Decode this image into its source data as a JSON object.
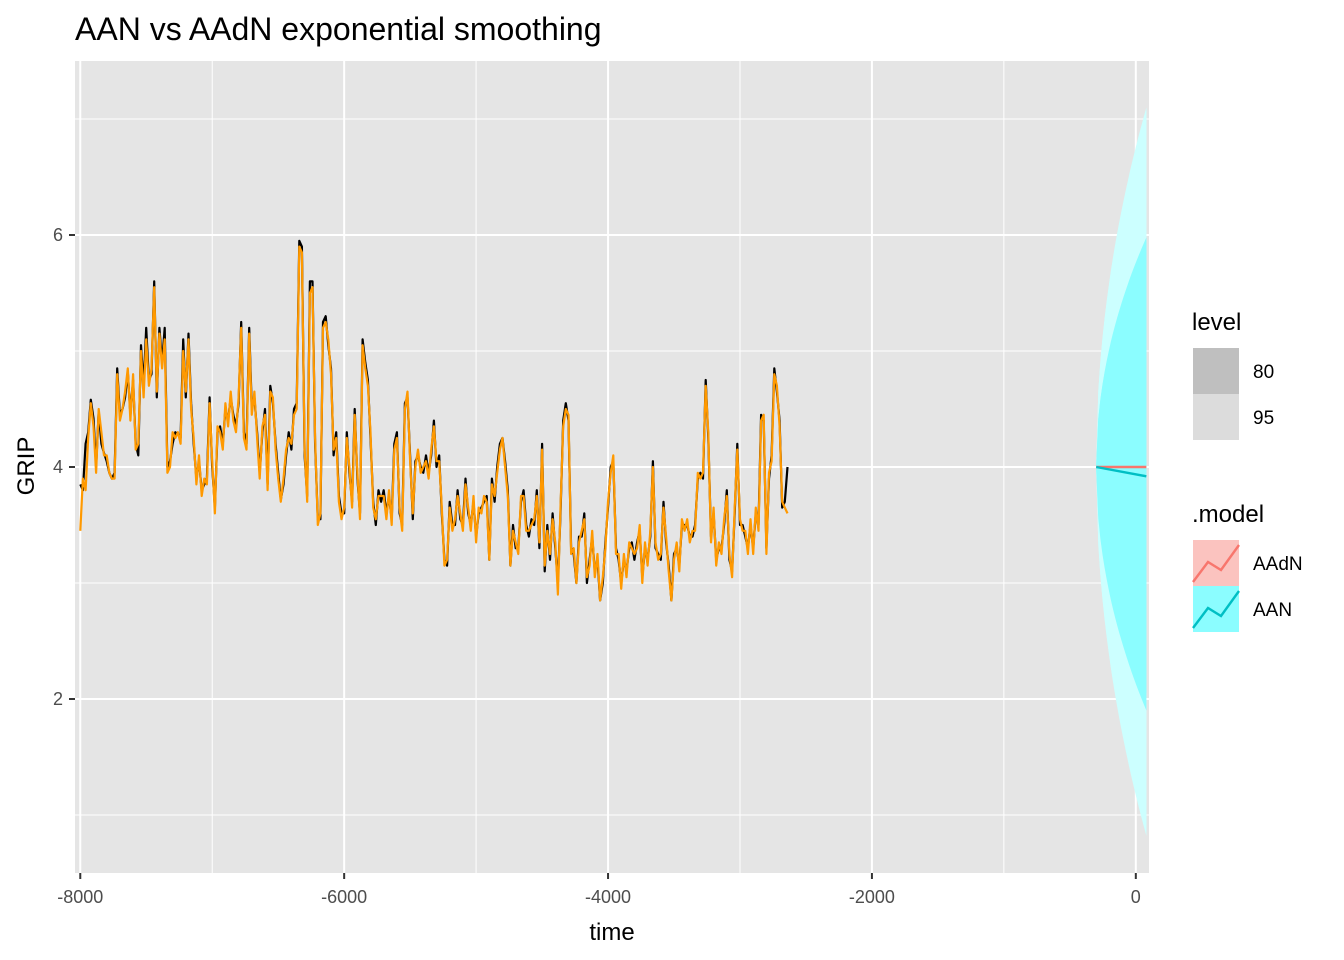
{
  "chart_data": {
    "type": "line",
    "title": "AAN vs AAdN exponential smoothing",
    "xlabel": "time",
    "ylabel": "GRIP",
    "xlim": [
      -8040,
      100
    ],
    "ylim": [
      0.5,
      7.5
    ],
    "x_ticks": [
      -8000,
      -6000,
      -4000,
      -2000,
      0
    ],
    "x_tick_labels": [
      "-8000",
      "-6000",
      "-4000",
      "-2000",
      "0"
    ],
    "y_ticks": [
      2,
      4,
      6
    ],
    "y_tick_labels": [
      "2",
      "4",
      "6"
    ],
    "grid": true,
    "legend_position": "right",
    "colors": {
      "panel": "#e5e5e5",
      "grid": "#ffffff",
      "observed": "#000000",
      "fitted": "#ff9900",
      "AAdN": "#f8766d",
      "AAN": "#00bfc4",
      "interval_80": "#8bfdff",
      "interval_95": "#ccffff"
    },
    "observed_start": -8000,
    "observed_end": -300,
    "observed_step": 20,
    "observed_values": [
      3.85,
      3.8,
      4.2,
      4.3,
      4.58,
      4.42,
      4.0,
      4.48,
      4.2,
      4.12,
      4.05,
      3.95,
      3.9,
      3.95,
      4.85,
      4.45,
      4.5,
      4.6,
      4.82,
      4.45,
      4.75,
      4.2,
      4.1,
      5.05,
      4.7,
      5.2,
      4.75,
      4.8,
      5.6,
      4.6,
      5.2,
      4.9,
      5.2,
      4.0,
      4.05,
      4.2,
      4.3,
      4.28,
      4.25,
      5.1,
      4.6,
      5.15,
      4.55,
      4.2,
      3.9,
      4.05,
      3.8,
      3.85,
      3.9,
      4.6,
      4.0,
      3.65,
      4.3,
      4.35,
      4.2,
      4.5,
      4.4,
      4.6,
      4.45,
      4.35,
      4.55,
      5.25,
      4.3,
      4.2,
      5.2,
      4.5,
      4.6,
      4.3,
      3.95,
      4.3,
      4.5,
      3.85,
      4.7,
      4.55,
      4.2,
      3.95,
      3.72,
      3.85,
      4.1,
      4.3,
      4.15,
      4.5,
      4.55,
      5.95,
      5.9,
      4.1,
      3.75,
      5.6,
      5.6,
      4.2,
      3.55,
      3.55,
      5.25,
      5.3,
      5.05,
      4.85,
      4.1,
      4.3,
      3.75,
      3.6,
      3.6,
      4.3,
      3.95,
      3.7,
      4.5,
      3.9,
      3.6,
      5.1,
      4.9,
      4.75,
      4.25,
      3.7,
      3.5,
      3.8,
      3.7,
      3.8,
      3.6,
      3.75,
      3.55,
      4.2,
      4.3,
      3.6,
      3.5,
      4.55,
      4.6,
      4.1,
      3.55,
      4.05,
      4.1,
      4.0,
      3.95,
      4.1,
      3.95,
      4.1,
      4.4,
      4.0,
      4.1,
      3.6,
      3.2,
      3.15,
      3.7,
      3.5,
      3.5,
      3.8,
      3.55,
      3.5,
      3.9,
      3.6,
      3.5,
      3.7,
      3.4,
      3.6,
      3.65,
      3.7,
      3.75,
      3.2,
      3.9,
      3.7,
      4.0,
      4.2,
      4.25,
      4.05,
      3.8,
      3.15,
      3.5,
      3.3,
      3.3,
      3.7,
      3.8,
      3.5,
      3.4,
      3.55,
      3.5,
      3.8,
      3.3,
      4.2,
      3.1,
      3.5,
      3.2,
      3.6,
      3.3,
      3.0,
      3.6,
      4.4,
      4.55,
      4.4,
      3.3,
      3.25,
      3.0,
      3.4,
      3.4,
      3.6,
      3.0,
      3.2,
      3.4,
      3.1,
      3.2,
      2.85,
      3.0,
      3.35,
      3.65,
      4.0,
      4.05,
      3.3,
      3.2,
      3.0,
      3.2,
      3.1,
      3.3,
      3.35,
      3.2,
      3.35,
      3.45,
      3.05,
      3.3,
      3.2,
      3.4,
      4.05,
      3.3,
      3.25,
      3.2,
      3.7,
      3.35,
      3.15,
      2.85,
      3.25,
      3.3,
      3.15,
      3.5,
      3.5,
      3.5,
      3.4,
      3.4,
      3.5,
      3.9,
      3.95,
      3.9,
      4.75,
      4.25,
      3.4,
      3.6,
      3.2,
      3.3,
      3.3,
      3.5,
      3.8,
      3.2,
      3.1,
      3.6,
      4.2,
      3.5,
      3.5,
      3.4,
      3.3,
      3.5,
      3.3,
      3.6,
      3.5,
      4.45,
      4.4,
      3.3,
      3.9,
      4.1,
      4.85,
      4.65,
      4.4,
      3.65,
      3.7,
      4.0
    ],
    "fitted_start": -8000,
    "fitted_end": -300,
    "fitted_step": 20,
    "fitted_values": [
      3.45,
      3.9,
      3.8,
      4.25,
      4.55,
      4.35,
      3.95,
      4.5,
      4.3,
      4.1,
      4.1,
      3.95,
      3.9,
      3.9,
      4.8,
      4.4,
      4.5,
      4.65,
      4.85,
      4.4,
      4.8,
      4.15,
      4.2,
      5.0,
      4.6,
      5.1,
      4.7,
      4.85,
      5.55,
      4.65,
      5.15,
      4.85,
      5.1,
      3.95,
      4.0,
      4.3,
      4.25,
      4.3,
      4.2,
      5.0,
      4.65,
      5.1,
      4.5,
      4.25,
      3.85,
      4.1,
      3.75,
      3.9,
      3.85,
      4.55,
      4.05,
      3.6,
      4.35,
      4.3,
      4.15,
      4.55,
      4.35,
      4.65,
      4.4,
      4.3,
      4.6,
      5.2,
      4.25,
      4.15,
      5.15,
      4.45,
      4.65,
      4.25,
      3.9,
      4.35,
      4.45,
      3.8,
      4.65,
      4.6,
      4.15,
      3.9,
      3.7,
      3.9,
      4.15,
      4.25,
      4.2,
      4.45,
      4.5,
      5.9,
      5.85,
      4.15,
      3.7,
      5.5,
      5.55,
      4.25,
      3.5,
      3.6,
      5.2,
      5.25,
      5.1,
      4.8,
      4.15,
      4.25,
      3.7,
      3.55,
      3.65,
      4.25,
      4.0,
      3.65,
      4.45,
      3.95,
      3.55,
      5.05,
      4.85,
      4.7,
      4.3,
      3.65,
      3.55,
      3.75,
      3.75,
      3.75,
      3.55,
      3.8,
      3.5,
      4.15,
      4.25,
      3.65,
      3.45,
      4.5,
      4.65,
      4.05,
      3.6,
      4.0,
      4.15,
      3.95,
      4.0,
      4.05,
      3.9,
      4.15,
      4.35,
      4.05,
      4.05,
      3.65,
      3.15,
      3.2,
      3.65,
      3.45,
      3.55,
      3.75,
      3.6,
      3.45,
      3.85,
      3.65,
      3.45,
      3.75,
      3.35,
      3.65,
      3.6,
      3.75,
      3.7,
      3.2,
      3.85,
      3.75,
      3.95,
      4.15,
      4.25,
      4.0,
      3.75,
      3.15,
      3.45,
      3.35,
      3.25,
      3.75,
      3.75,
      3.45,
      3.45,
      3.5,
      3.55,
      3.75,
      3.35,
      4.15,
      3.15,
      3.45,
      3.25,
      3.55,
      3.35,
      2.9,
      3.65,
      4.35,
      4.5,
      4.45,
      3.25,
      3.3,
      3.0,
      3.35,
      3.45,
      3.55,
      3.05,
      3.15,
      3.45,
      3.05,
      3.25,
      2.85,
      3.05,
      3.3,
      3.7,
      3.95,
      4.1,
      3.25,
      3.25,
      2.95,
      3.25,
      3.05,
      3.35,
      3.3,
      3.25,
      3.3,
      3.5,
      3.0,
      3.35,
      3.15,
      3.45,
      4.0,
      3.35,
      3.2,
      3.25,
      3.65,
      3.4,
      3.1,
      2.85,
      3.2,
      3.35,
      3.1,
      3.55,
      3.45,
      3.55,
      3.35,
      3.45,
      3.45,
      3.95,
      3.9,
      3.95,
      4.7,
      4.3,
      3.35,
      3.65,
      3.15,
      3.35,
      3.25,
      3.55,
      3.75,
      3.25,
      3.05,
      3.65,
      4.15,
      3.55,
      3.45,
      3.45,
      3.25,
      3.55,
      3.25,
      3.65,
      3.45,
      4.4,
      4.45,
      3.25,
      3.95,
      4.05,
      4.8,
      4.7,
      4.35,
      3.7,
      3.65,
      3.6
    ],
    "forecast_x": [
      -300,
      80
    ],
    "forecasts": {
      "AAdN": {
        "mean": [
          4.0,
          4.0
        ],
        "lower_80": [
          3.98,
          2.05
        ],
        "upper_80": [
          4.02,
          5.95
        ],
        "lower_95": [
          3.97,
          0.85
        ],
        "upper_95": [
          4.03,
          7.1
        ]
      },
      "AAN": {
        "mean": [
          4.0,
          3.92
        ],
        "lower_80": [
          3.98,
          1.9
        ],
        "upper_80": [
          4.02,
          5.98
        ],
        "lower_95": [
          3.97,
          0.82
        ],
        "upper_95": [
          4.03,
          7.08
        ]
      }
    }
  },
  "legend": {
    "level_title": "level",
    "level_items": [
      {
        "label": "80",
        "color": "#bfbfbf"
      },
      {
        "label": "95",
        "color": "#dcdcdc"
      }
    ],
    "model_title": ".model",
    "model_items": [
      {
        "label": "AAdN",
        "line_color": "#f8766d",
        "fill_color": "#fbc3bf"
      },
      {
        "label": "AAN",
        "line_color": "#00bfc4",
        "fill_color": "#8bfdff"
      }
    ]
  }
}
